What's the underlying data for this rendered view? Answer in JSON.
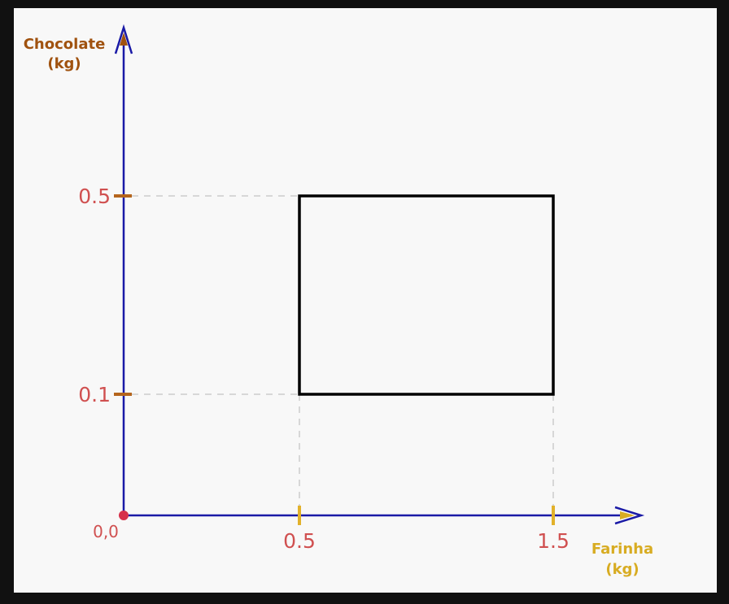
{
  "diagram": {
    "y_axis_label": [
      "Chocolate",
      "(kg)"
    ],
    "x_axis_label": [
      "Farinha",
      "(kg)"
    ],
    "origin_label": "0,0",
    "x_ticks": [
      {
        "value": 0.5,
        "label": "0.5"
      },
      {
        "value": 1.5,
        "label": "1.5"
      }
    ],
    "y_ticks": [
      {
        "value": 0.5,
        "label": "0.5"
      },
      {
        "value": 0.1,
        "label": "0.1"
      }
    ],
    "region": {
      "x_min": 0.5,
      "x_max": 1.5,
      "y_min": 0.1,
      "y_max": 0.5
    },
    "colors": {
      "background": "#111111",
      "panel": "#f8f8f8",
      "axis": "#1a1aa6",
      "y_label": "#a0520f",
      "x_label": "#d8ac22",
      "tick_text": "#d05050",
      "origin_dot": "#d6304a",
      "y_tick_mark": "#b5651d",
      "x_tick_mark": "#e2b12a",
      "region_stroke": "#000000",
      "guide": "#cccccc"
    }
  }
}
